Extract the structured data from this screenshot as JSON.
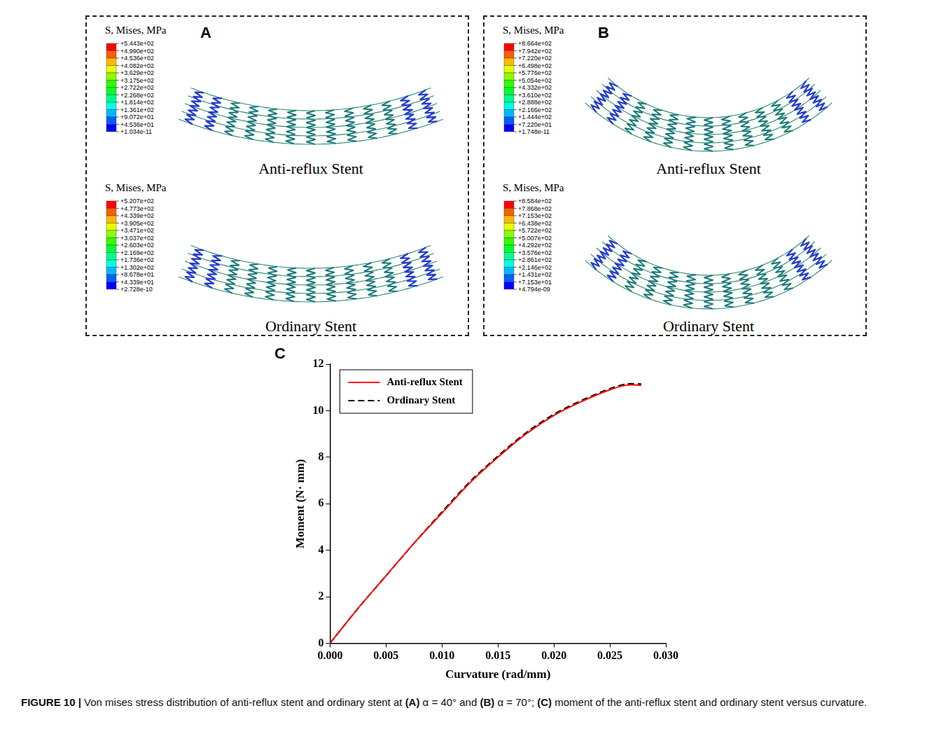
{
  "panels": [
    {
      "letter": "A",
      "views": [
        {
          "legend_title": "S, Mises, MPa",
          "label": "Anti-reflux Stent",
          "levels": [
            "+5.443e+02",
            "+4.990e+02",
            "+4.536e+02",
            "+4.082e+02",
            "+3.629e+02",
            "+3.175e+02",
            "+2.722e+02",
            "+2.268e+02",
            "+1.814e+02",
            "+1.361e+02",
            "+9.072e+01",
            "+4.536e+01",
            "+1.034e-11"
          ]
        },
        {
          "legend_title": "S, Mises, MPa",
          "label": "Ordinary Stent",
          "levels": [
            "+5.207e+02",
            "+4.773e+02",
            "+4.339e+02",
            "+3.905e+02",
            "+3.471e+02",
            "+3.037e+02",
            "+2.603e+02",
            "+2.169e+02",
            "+1.736e+02",
            "+1.302e+02",
            "+8.678e+01",
            "+4.339e+01",
            "+2.728e-10"
          ]
        }
      ]
    },
    {
      "letter": "B",
      "views": [
        {
          "legend_title": "S, Mises, MPa",
          "label": "Anti-reflux Stent",
          "levels": [
            "+8.664e+02",
            "+7.942e+02",
            "+7.220e+02",
            "+6.498e+02",
            "+5.776e+02",
            "+5.054e+02",
            "+4.332e+02",
            "+3.610e+02",
            "+2.888e+02",
            "+2.166e+02",
            "+1.444e+02",
            "+7.220e+01",
            "+1.748e-11"
          ]
        },
        {
          "legend_title": "S, Mises, MPa",
          "label": "Ordinary Stent",
          "levels": [
            "+8.584e+02",
            "+7.868e+02",
            "+7.153e+02",
            "+6.438e+02",
            "+5.722e+02",
            "+5.007e+02",
            "+4.292e+02",
            "+3.576e+02",
            "+2.861e+02",
            "+2.146e+02",
            "+1.431e+02",
            "+7.153e+01",
            "+4.794e-09"
          ]
        }
      ]
    }
  ],
  "chart_letter": "C",
  "chart_data": {
    "type": "line",
    "x_label": "Curvature (rad/mm)",
    "y_label": "Moment (N· mm)",
    "x": [
      0,
      0.0025,
      0.005,
      0.0075,
      0.01,
      0.0125,
      0.015,
      0.0175,
      0.02,
      0.0225,
      0.025,
      0.0265,
      0.0278
    ],
    "series": [
      {
        "name": "Anti-reflux Stent",
        "color": "#ff0000",
        "line_style": "solid",
        "values": [
          0,
          1.5,
          2.9,
          4.3,
          5.6,
          6.9,
          8.0,
          9.0,
          9.8,
          10.4,
          10.9,
          11.1,
          11.1
        ]
      },
      {
        "name": "Ordinary Stent",
        "color": "#000000",
        "line_style": "dashed",
        "values": [
          0,
          1.5,
          2.9,
          4.3,
          5.65,
          6.95,
          8.05,
          9.05,
          9.85,
          10.45,
          10.95,
          11.15,
          11.15
        ]
      }
    ],
    "xlim": [
      0,
      0.03
    ],
    "xticks": [
      {
        "value": 0,
        "label": "0.000"
      },
      0.005,
      {
        "value": 0.01,
        "label": "0.010"
      },
      0.015,
      {
        "value": 0.02,
        "label": "0.020"
      },
      0.025,
      {
        "value": 0.03,
        "label": "0.030"
      }
    ],
    "ylim": [
      0,
      12
    ],
    "yticks": [
      0,
      2,
      4,
      6,
      8,
      10,
      12
    ],
    "grid": false,
    "legend": "upper left"
  },
  "caption": {
    "label": "FIGURE 10 |",
    "parts": [
      "Von mises stress distribution of anti-reflux stent and ordinary stent at ",
      "(A)",
      " α = 40° and ",
      "(B)",
      " α = 70°; ",
      "(C)",
      " moment of the anti-reflux stent and ordinary stent versus curvature."
    ]
  }
}
